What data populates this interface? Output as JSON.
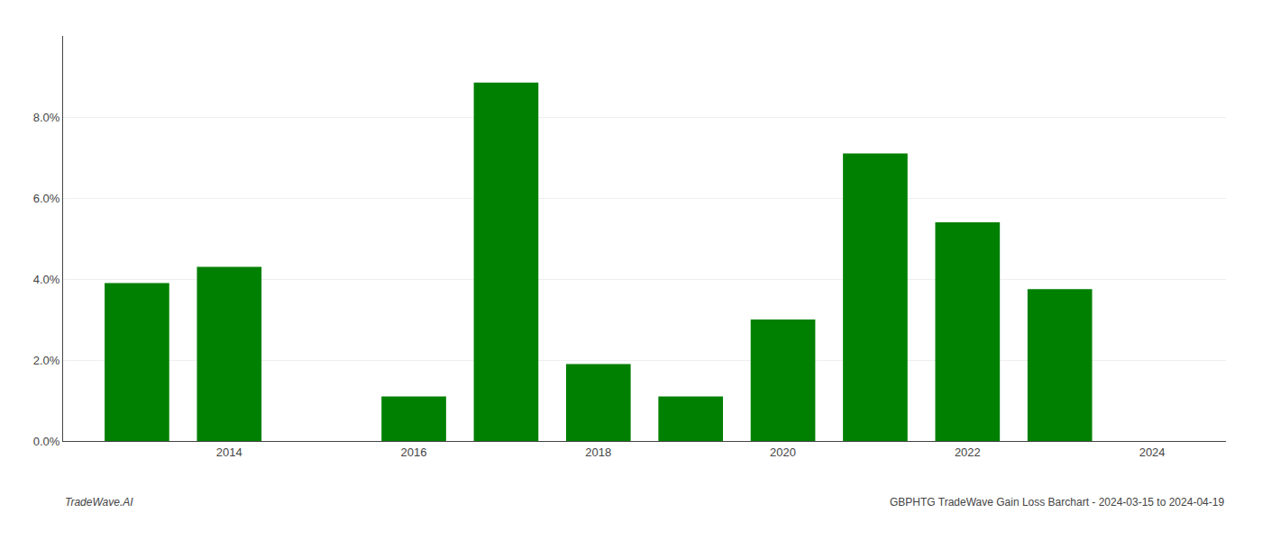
{
  "chart_data": {
    "type": "bar",
    "x": [
      2013,
      2014,
      2016,
      2017,
      2018,
      2019,
      2020,
      2021,
      2022,
      2023
    ],
    "values": [
      0.039,
      0.043,
      0.011,
      0.0885,
      0.019,
      0.011,
      0.03,
      0.071,
      0.054,
      0.0375
    ],
    "color": "#008000",
    "xlim": [
      2012.2,
      2024.8
    ],
    "xticks": [
      2014,
      2016,
      2018,
      2020,
      2022,
      2024
    ],
    "ylim": [
      0,
      0.1
    ],
    "yticks": [
      {
        "value": 0.0,
        "label": "0.0%"
      },
      {
        "value": 0.02,
        "label": "2.0%"
      },
      {
        "value": 0.04,
        "label": "4.0%"
      },
      {
        "value": 0.06,
        "label": "6.0%"
      },
      {
        "value": 0.08,
        "label": "8.0%"
      }
    ],
    "grid": true,
    "annotations": [
      "TradeWave.AI",
      "GBPHTG TradeWave Gain Loss Barchart - 2024-03-15 to 2024-04-19"
    ]
  }
}
